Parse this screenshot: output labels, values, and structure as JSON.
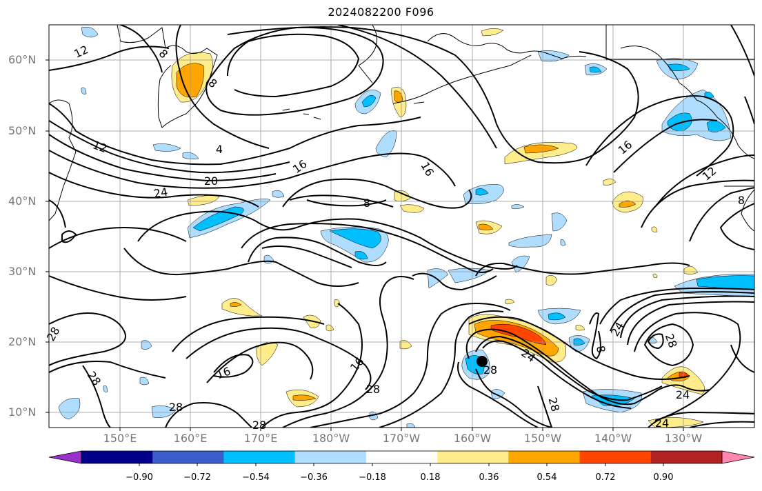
{
  "title": "2024082200 F096",
  "lat_labels": [
    "60°N",
    "50°N",
    "40°N",
    "30°N",
    "20°N",
    "10°N"
  ],
  "lon_labels": [
    "150°E",
    "160°E",
    "170°E",
    "180°W",
    "170°W",
    "160°W",
    "150°W",
    "140°W",
    "130°W"
  ],
  "colorbar": {
    "colors": [
      "#9932CC",
      "#00008B",
      "#3A5FCD",
      "#00BFFF",
      "#AEDDFF",
      "#FFFFFF",
      "#FFEC8B",
      "#FFA500",
      "#FF4500",
      "#B22222",
      "#FF88B0"
    ],
    "tick_labels": [
      "−0.90",
      "−0.72",
      "−0.54",
      "−0.36",
      "−0.18",
      "0.18",
      "0.36",
      "0.54",
      "0.72",
      "0.90"
    ]
  },
  "contour_labels": [
    "12",
    "8",
    "8",
    "4",
    "12",
    "20",
    "24",
    "16",
    "16",
    "8",
    "16",
    "12",
    "8",
    "28",
    "28",
    "16",
    "16",
    "28",
    "28",
    "28",
    "24",
    "24",
    "8",
    "28",
    "28",
    "28",
    "24"
  ],
  "marker": "storm-center"
}
